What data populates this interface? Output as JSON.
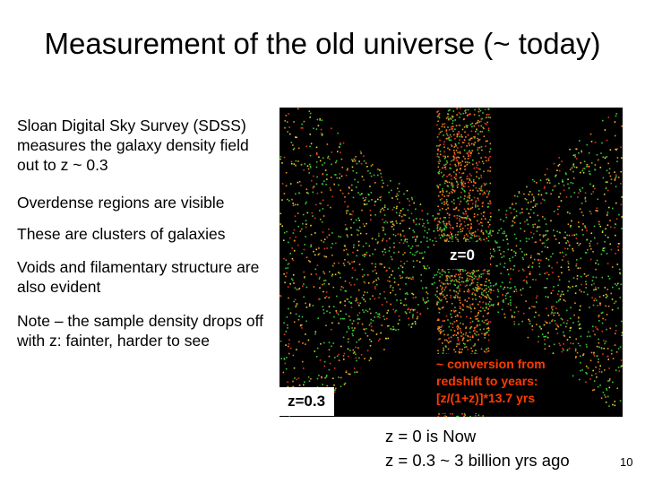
{
  "slide": {
    "title": "Measurement of the old universe (~ today)",
    "paragraphs": [
      "Sloan Digital Sky Survey (SDSS) measures the galaxy density field out to z ~ 0.3",
      "Overdense regions are visible",
      "These are clusters of galaxies",
      " Voids and filamentary structure are also evident",
      "Note – the sample density drops off with z: fainter, harder to see"
    ],
    "image_labels": {
      "z0": "z=0",
      "z03": "z=0.3",
      "conversion": "~ conversion from redshift to years: [z/(1+z)]*13.7 yrs"
    },
    "bottom_lines": [
      "z = 0 is Now",
      "z = 0.3 ~ 3 billion yrs ago"
    ],
    "page_number": "10"
  },
  "colors": {
    "background": "#ffffff",
    "image_background": "#000000",
    "conversion_text": "#ff3b00",
    "galaxy_green": "#37c83a",
    "galaxy_yellow": "#e6d23a",
    "galaxy_red": "#e4321e",
    "galaxy_orange": "#f08a1e"
  }
}
